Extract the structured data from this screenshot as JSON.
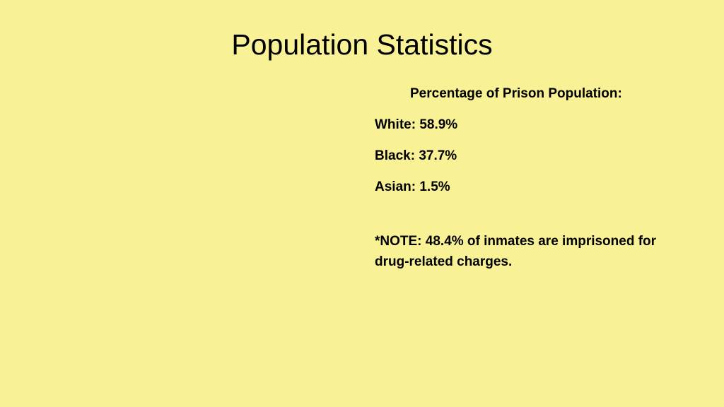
{
  "slide": {
    "background_color": "#f9f195",
    "text_color": "#000000",
    "title": "Population Statistics",
    "title_fontsize": 41,
    "title_fontweight": 400,
    "subtitle": "Percentage of Prison Population:",
    "subtitle_fontsize": 19,
    "subtitle_fontweight": "bold",
    "stats": [
      {
        "label": "White",
        "value": "58.9%"
      },
      {
        "label": "Black",
        "value": "37.7%"
      },
      {
        "label": "Asian",
        "value": "1.5%"
      }
    ],
    "stat_fontsize": 19,
    "stat_fontweight": "bold",
    "note": "*NOTE: 48.4% of inmates are imprisoned for drug-related charges.",
    "note_fontsize": 19,
    "note_fontweight": "bold"
  }
}
